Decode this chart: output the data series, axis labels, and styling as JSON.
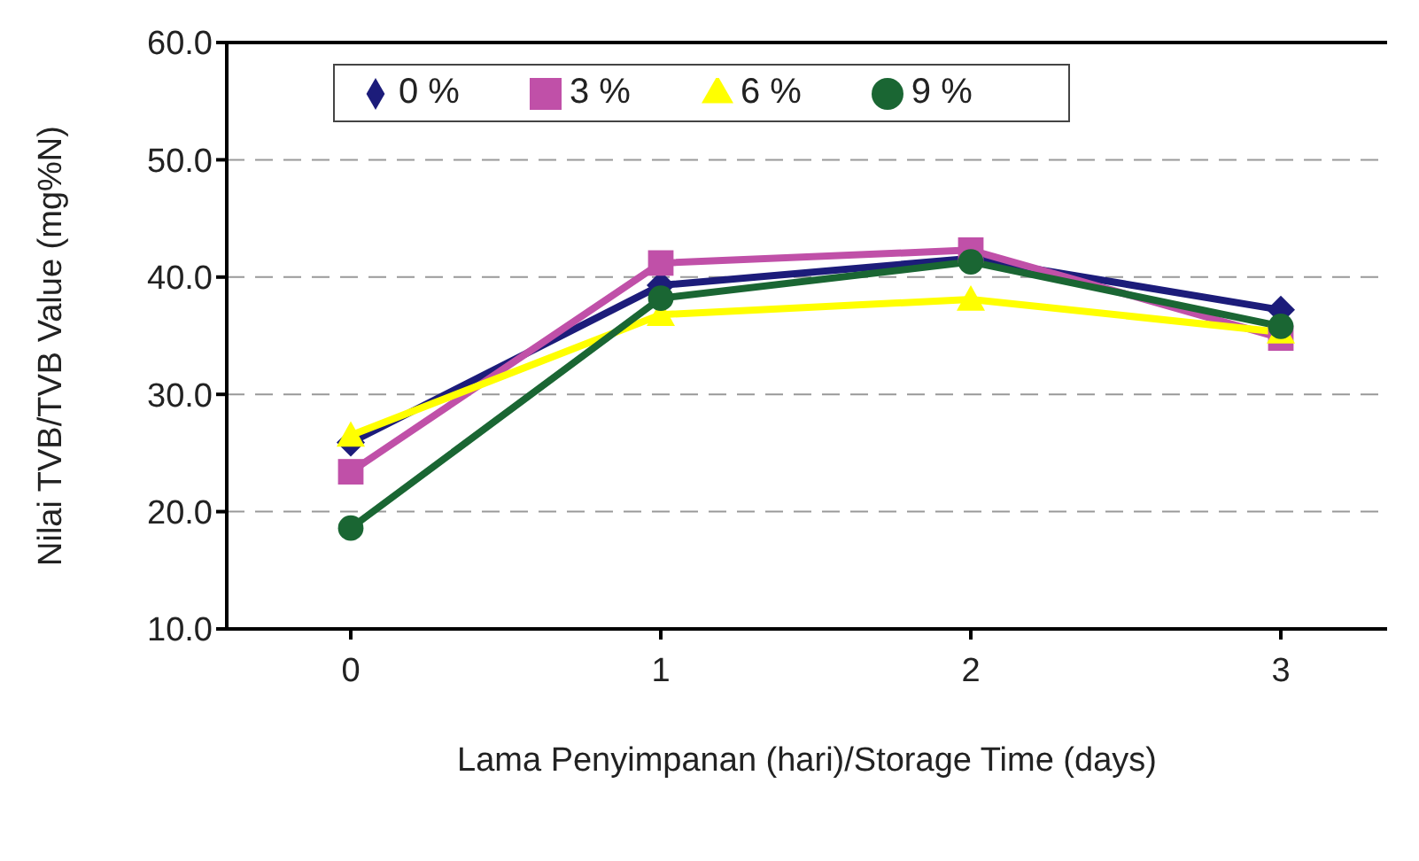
{
  "chart_data": {
    "type": "line",
    "xlabel": "Lama Penyimpanan (hari)/Storage Time (days)",
    "ylabel": "Nilai TVB/TVB Value  (mg%N)",
    "categories": [
      "0",
      "1",
      "2",
      "3"
    ],
    "series": [
      {
        "name": "0 %",
        "color": "#1c1c7a",
        "marker": "diamond",
        "values": [
          25.9,
          39.3,
          41.6,
          37.2
        ]
      },
      {
        "name": "3 %",
        "color": "#c050a8",
        "marker": "square",
        "values": [
          23.4,
          41.2,
          42.3,
          34.8
        ]
      },
      {
        "name": "6 %",
        "color": "#ffff00",
        "marker": "triangle",
        "values": [
          26.5,
          36.8,
          38.1,
          35.3
        ]
      },
      {
        "name": "9 %",
        "color": "#1a6633",
        "marker": "circle",
        "values": [
          18.6,
          38.2,
          41.3,
          35.8
        ]
      }
    ],
    "ylim": [
      10,
      60
    ],
    "yticks": [
      {
        "value": 10,
        "label": "10.0"
      },
      {
        "value": 20,
        "label": "20.0"
      },
      {
        "value": 30,
        "label": "30.0"
      },
      {
        "value": 40,
        "label": "40.0"
      },
      {
        "value": 50,
        "label": "50.0"
      },
      {
        "value": 60,
        "label": "60.0"
      }
    ],
    "grid": "y",
    "legend": "top",
    "line_style": "solid"
  }
}
